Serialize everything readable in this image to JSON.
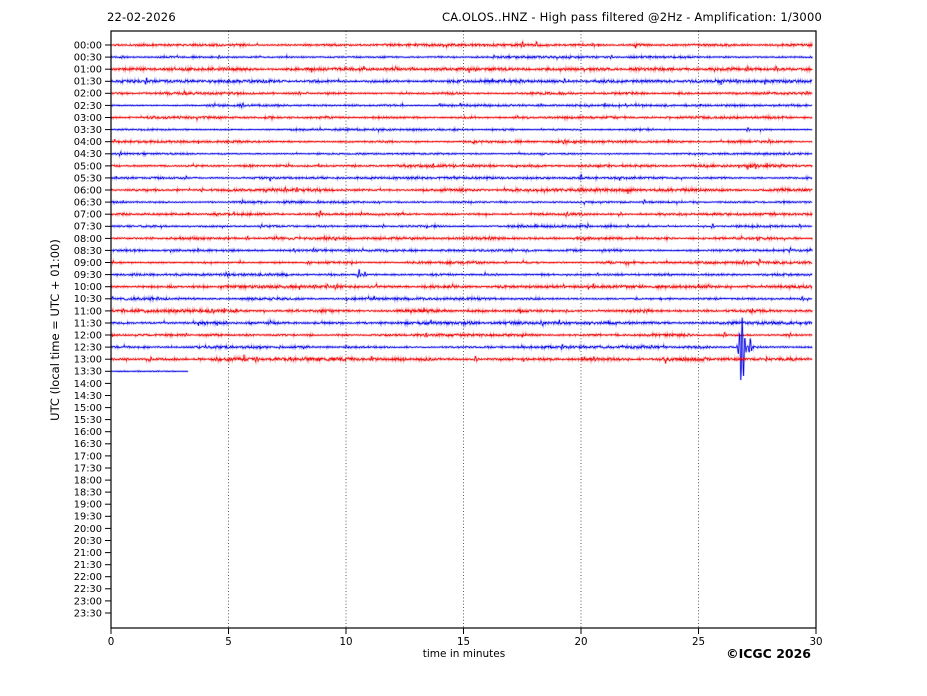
{
  "header": {
    "date": "22-02-2026",
    "title": "CA.OLOS..HNZ - High pass filtered @2Hz - Amplification: 1/3000"
  },
  "footer": {
    "copyright": "©ICGC 2026"
  },
  "palette": {
    "red": "#f00000",
    "blue": "#0000e6",
    "frame": "#000000",
    "grid": "#333333"
  },
  "chart_data": {
    "type": "line",
    "subtype": "helicorder-seismogram",
    "date": "22-02-2026",
    "title": "CA.OLOS..HNZ - High pass filtered @2Hz - Amplification: 1/3000",
    "xlabel": "time in minutes",
    "ylabel": "UTC (local time = UTC + 01:00)",
    "xlim": [
      0,
      30
    ],
    "x_ticks": [
      0,
      5,
      10,
      15,
      20,
      25,
      30
    ],
    "grid_minutes": [
      5,
      10,
      15,
      20,
      25
    ],
    "minutes_per_row": 30,
    "row_labels": [
      "00:00",
      "00:30",
      "01:00",
      "01:30",
      "02:00",
      "02:30",
      "03:00",
      "03:30",
      "04:00",
      "04:30",
      "05:00",
      "05:30",
      "06:00",
      "06:30",
      "07:00",
      "07:30",
      "08:00",
      "08:30",
      "09:00",
      "09:30",
      "10:00",
      "10:30",
      "11:00",
      "11:30",
      "12:00",
      "12:30",
      "13:00",
      "13:30",
      "14:00",
      "14:30",
      "15:00",
      "15:30",
      "16:00",
      "16:30",
      "17:00",
      "17:30",
      "18:00",
      "18:30",
      "19:00",
      "19:30",
      "20:00",
      "20:30",
      "21:00",
      "21:30",
      "22:00",
      "22:30",
      "23:00",
      "23:30"
    ],
    "traces": [
      {
        "label": "00:00",
        "color": "red",
        "noise": 0.7,
        "events": [
          [
            17.5,
            3
          ],
          [
            18.1,
            3
          ],
          [
            20.5,
            1.5
          ]
        ]
      },
      {
        "label": "00:30",
        "color": "blue",
        "noise": 0.6,
        "events": [
          [
            0.5,
            2
          ],
          [
            4.6,
            1.5
          ],
          [
            16.3,
            1.5
          ],
          [
            21.3,
            1.5
          ]
        ]
      },
      {
        "label": "01:00",
        "color": "red",
        "noise": 0.85,
        "events": [
          [
            16.6,
            2
          ],
          [
            27.1,
            2
          ],
          [
            28.3,
            2.5
          ]
        ]
      },
      {
        "label": "01:30",
        "color": "blue",
        "noise": 0.8,
        "events": [
          [
            1.5,
            3.5
          ],
          [
            9.9,
            1.5
          ],
          [
            19.3,
            2
          ],
          [
            26.6,
            1.5
          ]
        ]
      },
      {
        "label": "02:00",
        "color": "red",
        "noise": 0.7,
        "events": [
          [
            3.1,
            1.5
          ],
          [
            8.0,
            2
          ],
          [
            27.8,
            2
          ]
        ]
      },
      {
        "label": "02:30",
        "color": "blue",
        "noise": 0.55,
        "events": [
          [
            5.6,
            2.5
          ],
          [
            21.9,
            1.5
          ]
        ]
      },
      {
        "label": "03:00",
        "color": "red",
        "noise": 0.65,
        "events": [
          [
            17.3,
            1.2
          ]
        ]
      },
      {
        "label": "03:30",
        "color": "blue",
        "noise": 0.5,
        "events": [
          [
            27.1,
            2.2
          ]
        ]
      },
      {
        "label": "04:00",
        "color": "red",
        "noise": 0.6,
        "events": [
          [
            19.3,
            2.5
          ],
          [
            28.0,
            2
          ]
        ]
      },
      {
        "label": "04:30",
        "color": "blue",
        "noise": 0.5,
        "events": [
          [
            0.4,
            2
          ]
        ]
      },
      {
        "label": "05:00",
        "color": "red",
        "noise": 0.75,
        "events": [
          [
            5.9,
            1.5
          ],
          [
            13.7,
            2
          ],
          [
            15.4,
            2.5
          ],
          [
            27.4,
            1.5
          ]
        ]
      },
      {
        "label": "05:30",
        "color": "blue",
        "noise": 0.6,
        "events": [
          [
            3.2,
            1.3
          ],
          [
            20.0,
            3
          ]
        ]
      },
      {
        "label": "06:00",
        "color": "red",
        "noise": 0.8,
        "events": [
          [
            3.9,
            1.5
          ],
          [
            7.4,
            2.5
          ],
          [
            7.9,
            2.5
          ],
          [
            28.4,
            2
          ]
        ]
      },
      {
        "label": "06:30",
        "color": "blue",
        "noise": 0.6,
        "events": [
          [
            5.6,
            1.5
          ],
          [
            8.8,
            1.5
          ],
          [
            22.7,
            2
          ]
        ]
      },
      {
        "label": "07:00",
        "color": "red",
        "noise": 0.6,
        "events": [
          [
            8.9,
            3
          ],
          [
            14.3,
            1.5
          ],
          [
            19.4,
            2
          ],
          [
            20.0,
            2
          ],
          [
            21.7,
            1.5
          ]
        ]
      },
      {
        "label": "07:30",
        "color": "blue",
        "noise": 0.6,
        "events": [
          [
            6.4,
            1.5
          ],
          [
            11.6,
            1.5
          ],
          [
            20.3,
            1.5
          ],
          [
            22.0,
            1.5
          ],
          [
            25.6,
            2.5
          ],
          [
            29.3,
            1.5
          ]
        ]
      },
      {
        "label": "08:00",
        "color": "red",
        "noise": 0.7,
        "events": [
          [
            5.8,
            2
          ],
          [
            16.1,
            1.5
          ]
        ]
      },
      {
        "label": "08:30",
        "color": "blue",
        "noise": 0.6,
        "events": [
          [
            3.7,
            1.5
          ],
          [
            8.6,
            2
          ],
          [
            10.7,
            1.5
          ],
          [
            17.1,
            1.5
          ],
          [
            17.7,
            1.5
          ],
          [
            28.9,
            2.5
          ]
        ]
      },
      {
        "label": "09:00",
        "color": "red",
        "noise": 0.7,
        "events": [
          [
            8.4,
            2
          ],
          [
            16.8,
            1.5
          ],
          [
            26.9,
            2.5
          ],
          [
            27.6,
            2.5
          ]
        ]
      },
      {
        "label": "09:30",
        "color": "blue",
        "noise": 0.7,
        "events": [
          [
            4.9,
            2
          ],
          [
            10.55,
            5
          ],
          [
            10.8,
            3
          ],
          [
            15.9,
            1.5
          ],
          [
            16.4,
            1.5
          ],
          [
            20.7,
            1.5
          ]
        ]
      },
      {
        "label": "10:00",
        "color": "red",
        "noise": 0.8,
        "events": [
          [
            8.7,
            2.5
          ],
          [
            9.2,
            2.5
          ],
          [
            9.6,
            2
          ],
          [
            22.6,
            1.5
          ],
          [
            27.9,
            2
          ]
        ]
      },
      {
        "label": "10:30",
        "color": "blue",
        "noise": 0.7,
        "events": [
          [
            2.0,
            1.3
          ],
          [
            29.4,
            2.5
          ]
        ]
      },
      {
        "label": "11:00",
        "color": "red",
        "noise": 0.9,
        "events": [
          [
            4.3,
            2.5
          ],
          [
            5.1,
            2
          ],
          [
            19.4,
            1.5
          ],
          [
            22.6,
            1.5
          ],
          [
            27.3,
            1.5
          ]
        ]
      },
      {
        "label": "11:30",
        "color": "blue",
        "noise": 0.8,
        "events": [
          [
            4.9,
            1.5
          ],
          [
            18.3,
            2.5
          ]
        ]
      },
      {
        "label": "12:00",
        "color": "red",
        "noise": 0.7,
        "events": [
          [
            3.2,
            1.5
          ],
          [
            13.4,
            2
          ],
          [
            26.1,
            2.5
          ],
          [
            28.9,
            2
          ]
        ]
      },
      {
        "label": "12:30",
        "color": "blue",
        "noise": 0.7,
        "events": [
          [
            7.2,
            1.5
          ],
          [
            10.0,
            2
          ],
          [
            19.2,
            2
          ],
          [
            23.0,
            2
          ],
          [
            26.85,
            30
          ],
          [
            27.2,
            9
          ]
        ]
      },
      {
        "label": "13:00",
        "color": "red",
        "noise": 1.0,
        "events": [
          [
            0.7,
            1.5
          ],
          [
            1.7,
            2.5
          ],
          [
            4.5,
            2
          ],
          [
            6.2,
            2.5
          ],
          [
            15.5,
            2.5
          ],
          [
            27.9,
            2
          ]
        ]
      },
      {
        "label": "13:30",
        "color": "blue",
        "noise": 0.3,
        "extent": 3.3,
        "events": []
      }
    ]
  }
}
